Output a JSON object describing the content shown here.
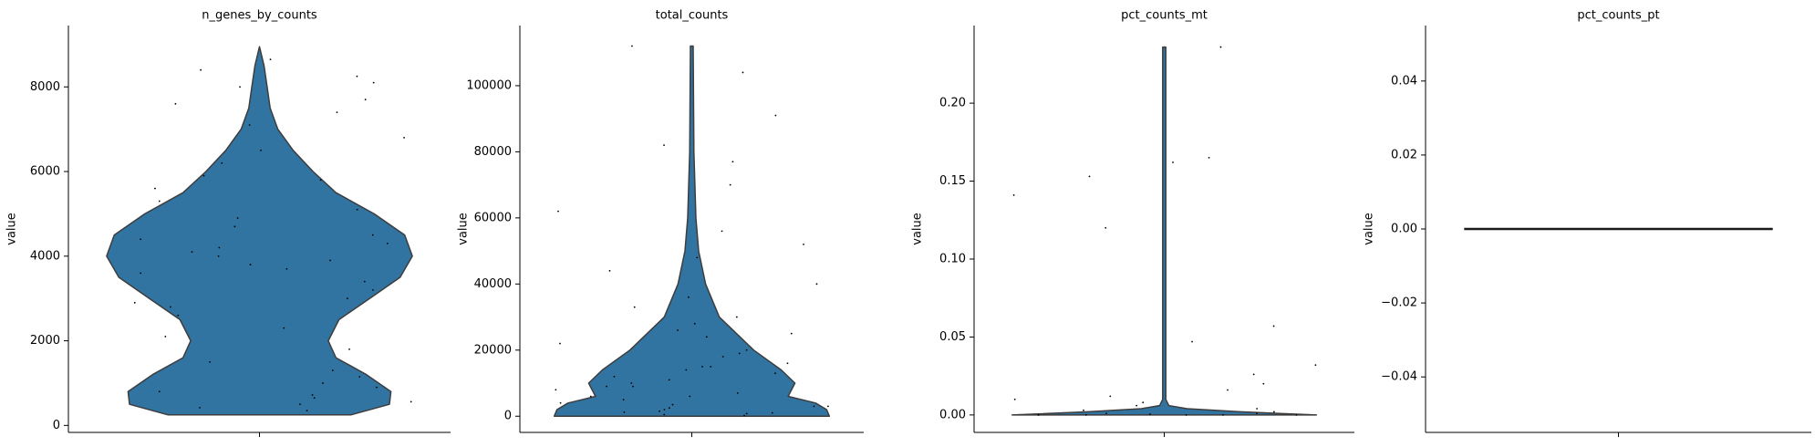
{
  "chart_data": [
    {
      "type": "violin",
      "title": "n_genes_by_counts",
      "ylabel": "value",
      "color": "#3274a1",
      "edge_color": "#3d3d3d",
      "ylim": [
        -165,
        9450
      ],
      "yticks": [
        0,
        2000,
        4000,
        6000,
        8000
      ],
      "density": {
        "y": [
          250,
          500,
          800,
          1200,
          1600,
          2000,
          2500,
          3000,
          3500,
          4000,
          4500,
          5000,
          5500,
          6000,
          6500,
          7000,
          7500,
          8000,
          8500,
          8950
        ],
        "width": [
          0.6,
          0.85,
          0.86,
          0.7,
          0.5,
          0.45,
          0.52,
          0.72,
          0.92,
          1.0,
          0.95,
          0.75,
          0.5,
          0.35,
          0.22,
          0.12,
          0.07,
          0.05,
          0.03,
          0.0
        ]
      },
      "points": [
        350,
        420,
        500,
        560,
        650,
        720,
        800,
        900,
        1000,
        1150,
        1300,
        1500,
        1800,
        2100,
        2300,
        2600,
        2800,
        3000,
        3200,
        3400,
        3600,
        3800,
        3900,
        4000,
        4100,
        4200,
        4300,
        4500,
        4700,
        4900,
        5100,
        5300,
        5600,
        5900,
        6200,
        6500,
        6800,
        7100,
        7400,
        7600,
        8000,
        8100,
        8250,
        8400,
        8650,
        7700,
        5800,
        4400,
        3700,
        2900
      ]
    },
    {
      "type": "violin",
      "title": "total_counts",
      "ylabel": "value",
      "color": "#3274a1",
      "edge_color": "#3d3d3d",
      "ylim": [
        -4900,
        118200
      ],
      "yticks": [
        0,
        20000,
        40000,
        60000,
        80000,
        100000
      ],
      "density": {
        "y": [
          0,
          2000,
          4000,
          6000,
          10000,
          14000,
          20000,
          30000,
          40000,
          50000,
          60000,
          80000,
          112000
        ],
        "width": [
          1.0,
          0.98,
          0.9,
          0.7,
          0.75,
          0.65,
          0.45,
          0.2,
          0.1,
          0.05,
          0.03,
          0.015,
          0.01
        ]
      },
      "points": [
        200,
        500,
        800,
        1200,
        1500,
        2000,
        2500,
        3000,
        3500,
        4000,
        5000,
        6000,
        7000,
        8000,
        9000,
        10000,
        11000,
        12000,
        13000,
        14000,
        15000,
        16000,
        18000,
        20000,
        22000,
        24000,
        26000,
        28000,
        30000,
        33000,
        36000,
        40000,
        44000,
        48000,
        52000,
        56000,
        62000,
        70000,
        77000,
        82000,
        91000,
        104000,
        112000,
        1000,
        3000,
        6000,
        9000,
        15000,
        19000,
        25000
      ]
    },
    {
      "type": "violin",
      "title": "pct_counts_mt",
      "ylabel": "value",
      "color": "#3274a1",
      "edge_color": "#3d3d3d",
      "ylim": [
        -0.0112,
        0.2498
      ],
      "yticks": [
        {
          "value": 0,
          "label": "0.00"
        },
        {
          "value": 0.05,
          "label": "0.05"
        },
        {
          "value": 0.1,
          "label": "0.10"
        },
        {
          "value": 0.15,
          "label": "0.15"
        },
        {
          "value": 0.2,
          "label": "0.20"
        }
      ],
      "density": {
        "y": [
          0,
          0.002,
          0.004,
          0.006,
          0.01,
          0.236
        ],
        "width": [
          1.0,
          0.5,
          0.15,
          0.03,
          0.01,
          0.01
        ]
      },
      "points": [
        0,
        0,
        0,
        0,
        0,
        0,
        0.0005,
        0.001,
        0.001,
        0.002,
        0.003,
        0.004,
        0.006,
        0.008,
        0.01,
        0.012,
        0.016,
        0.02,
        0.026,
        0.032,
        0.047,
        0.057,
        0.12,
        0.141,
        0.153,
        0.162,
        0.165,
        0.236
      ]
    },
    {
      "type": "violin",
      "title": "pct_counts_pt",
      "ylabel": "value",
      "color": "#3274a1",
      "edge_color": "#1a1a1a",
      "ylim": [
        -0.055,
        0.055
      ],
      "yticks": [
        {
          "value": -0.04,
          "label": "−0.04"
        },
        {
          "value": -0.02,
          "label": "−0.02"
        },
        {
          "value": 0,
          "label": "0.00"
        },
        {
          "value": 0.02,
          "label": "0.02"
        },
        {
          "value": 0.04,
          "label": "0.04"
        }
      ],
      "density": {
        "y": [
          0
        ],
        "width": [
          1.0
        ]
      }
    }
  ]
}
